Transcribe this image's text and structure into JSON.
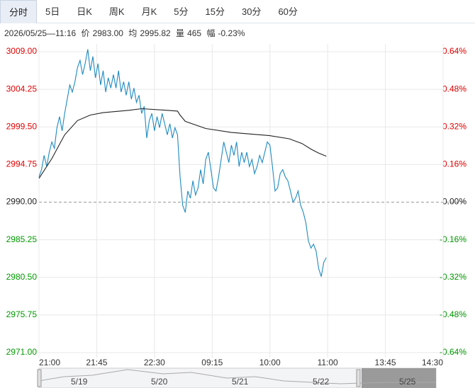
{
  "tabs": [
    "分时",
    "5日",
    "日K",
    "周K",
    "月K",
    "5分",
    "15分",
    "30分",
    "60分"
  ],
  "info": {
    "time": "2026/05/25—11:16",
    "price_label": "价",
    "price": "2983.00",
    "avg_label": "均",
    "avg": "2995.82",
    "volume_label": "量",
    "volume": "465",
    "change_label": "幅",
    "change": "-0.23%"
  },
  "navigator": {
    "dates": [
      "5/19",
      "5/20",
      "5/21",
      "5/22",
      "5/25"
    ]
  },
  "chart_data": {
    "type": "line",
    "baseline": 2990,
    "up_color": "#e00000",
    "down_color": "#009900",
    "xlim": [
      0,
      315
    ],
    "xticks": [
      {
        "value": 0,
        "label": "21:00"
      },
      {
        "value": 45,
        "label": "21:45"
      },
      {
        "value": 90,
        "label": "22:30"
      },
      {
        "value": 135,
        "label": "09:15"
      },
      {
        "value": 180,
        "label": "10:00"
      },
      {
        "value": 225,
        "label": "11:00"
      },
      {
        "value": 270,
        "label": "13:45"
      },
      {
        "value": 315,
        "label": "14:30"
      }
    ],
    "ylim": [
      2971,
      3009
    ],
    "yticks": [
      {
        "value": 3009,
        "label": "3009.00"
      },
      {
        "value": 3004.25,
        "label": "3004.25"
      },
      {
        "value": 2999.5,
        "label": "2999.50"
      },
      {
        "value": 2994.75,
        "label": "2994.75"
      },
      {
        "value": 2990,
        "label": "2990.00"
      },
      {
        "value": 2985.25,
        "label": "2985.25"
      },
      {
        "value": 2980.5,
        "label": "2980.50"
      },
      {
        "value": 2975.75,
        "label": "2975.75"
      },
      {
        "value": 2971,
        "label": "2971.00"
      }
    ],
    "y2lim": [
      -0.64,
      0.64
    ],
    "y2ticks": [
      {
        "value": 0.64,
        "label": "0.64%"
      },
      {
        "value": 0.48,
        "label": "0.48%"
      },
      {
        "value": 0.32,
        "label": "0.32%"
      },
      {
        "value": 0.16,
        "label": "0.16%"
      },
      {
        "value": 0,
        "label": "0.00%"
      },
      {
        "value": -0.16,
        "label": "-0.16%"
      },
      {
        "value": -0.32,
        "label": "-0.32%"
      },
      {
        "value": -0.48,
        "label": "-0.48%"
      },
      {
        "value": -0.64,
        "label": "-0.64%"
      }
    ],
    "x": [
      0,
      2,
      4,
      6,
      8,
      10,
      12,
      14,
      16,
      18,
      20,
      22,
      24,
      26,
      28,
      30,
      32,
      34,
      36,
      38,
      40,
      42,
      44,
      46,
      48,
      50,
      52,
      54,
      56,
      58,
      60,
      62,
      64,
      66,
      68,
      70,
      72,
      74,
      76,
      78,
      80,
      82,
      84,
      86,
      88,
      90,
      92,
      94,
      96,
      98,
      100,
      102,
      104,
      106,
      108,
      110,
      112,
      114,
      116,
      118,
      120,
      122,
      124,
      126,
      128,
      130,
      132,
      134,
      136,
      138,
      140,
      142,
      144,
      146,
      148,
      150,
      152,
      154,
      156,
      158,
      160,
      162,
      164,
      166,
      168,
      170,
      172,
      174,
      176,
      178,
      180,
      182,
      184,
      186,
      188,
      190,
      192,
      194,
      196,
      198,
      200,
      202,
      204,
      206,
      208,
      210,
      212,
      214,
      216,
      218,
      220,
      222,
      224
    ],
    "series": [
      {
        "name": "价",
        "color": "#1f8ac0",
        "values": [
          2993.2,
          2994.1,
          2995.9,
          2994.5,
          2996.3,
          2997.6,
          2996.8,
          2999.4,
          3000.8,
          2999.0,
          3001.2,
          3003.0,
          3004.8,
          3003.9,
          3005.2,
          3007.0,
          3007.9,
          3006.1,
          3007.5,
          3009.3,
          3006.6,
          3008.4,
          3005.7,
          3007.5,
          3004.8,
          3006.6,
          3003.9,
          3005.7,
          3004.4,
          3006.1,
          3004.4,
          3006.6,
          3003.9,
          3005.2,
          3003.5,
          3005.2,
          3003.0,
          3004.4,
          3002.6,
          3003.5,
          3001.2,
          3002.1,
          2998.1,
          3000.3,
          3001.2,
          2999.0,
          3000.8,
          2999.4,
          3001.2,
          2999.9,
          2998.5,
          2999.9,
          2998.1,
          2999.4,
          2998.5,
          2993.2,
          2989.6,
          2988.7,
          2991.4,
          2990.5,
          2992.7,
          2990.9,
          2991.8,
          2994.1,
          2992.3,
          2995.4,
          2996.3,
          2994.1,
          2991.8,
          2991.4,
          2993.2,
          2995.4,
          2997.6,
          2996.3,
          2995.0,
          2997.2,
          2995.9,
          2997.6,
          2994.5,
          2996.3,
          2995.0,
          2996.3,
          2994.5,
          2995.4,
          2993.6,
          2994.5,
          2995.9,
          2995.0,
          2996.3,
          2997.6,
          2997.2,
          2994.5,
          2991.4,
          2991.8,
          2993.6,
          2994.1,
          2993.2,
          2992.7,
          2991.4,
          2990.0,
          2990.5,
          2991.4,
          2989.6,
          2988.7,
          2987.4,
          2985.1,
          2984.2,
          2984.7,
          2983.8,
          2981.6,
          2980.6,
          2982.4,
          2983.0
        ]
      },
      {
        "name": "均",
        "color": "#222222",
        "x": [
          0,
          10,
          20,
          30,
          40,
          50,
          70,
          80,
          100,
          108,
          110,
          114,
          130,
          150,
          180,
          195,
          205,
          212,
          218,
          224
        ],
        "values": [
          2993.0,
          2995.5,
          2998.5,
          3000.3,
          3001.0,
          3001.3,
          3001.6,
          3001.8,
          3001.6,
          3001.5,
          3001.0,
          3000.2,
          2999.3,
          2998.8,
          2998.4,
          2998.0,
          2997.4,
          2996.7,
          2996.2,
          2995.8
        ]
      }
    ]
  }
}
